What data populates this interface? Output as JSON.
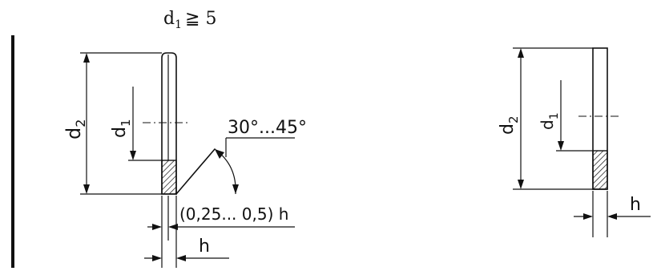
{
  "condition": {
    "symbol": "d",
    "subscript": "1",
    "relation": "≧ 5"
  },
  "left_view": {
    "outer_diameter": {
      "symbol": "d",
      "subscript": "2"
    },
    "inner_diameter": {
      "symbol": "d",
      "subscript": "1"
    },
    "chamfer_angle": "30°...45°",
    "chamfer_length": "(0,25... 0,5) h",
    "thickness": "h"
  },
  "right_view": {
    "outer_diameter": {
      "symbol": "d",
      "subscript": "2"
    },
    "inner_diameter": {
      "symbol": "d",
      "subscript": "1"
    },
    "thickness": "h"
  }
}
